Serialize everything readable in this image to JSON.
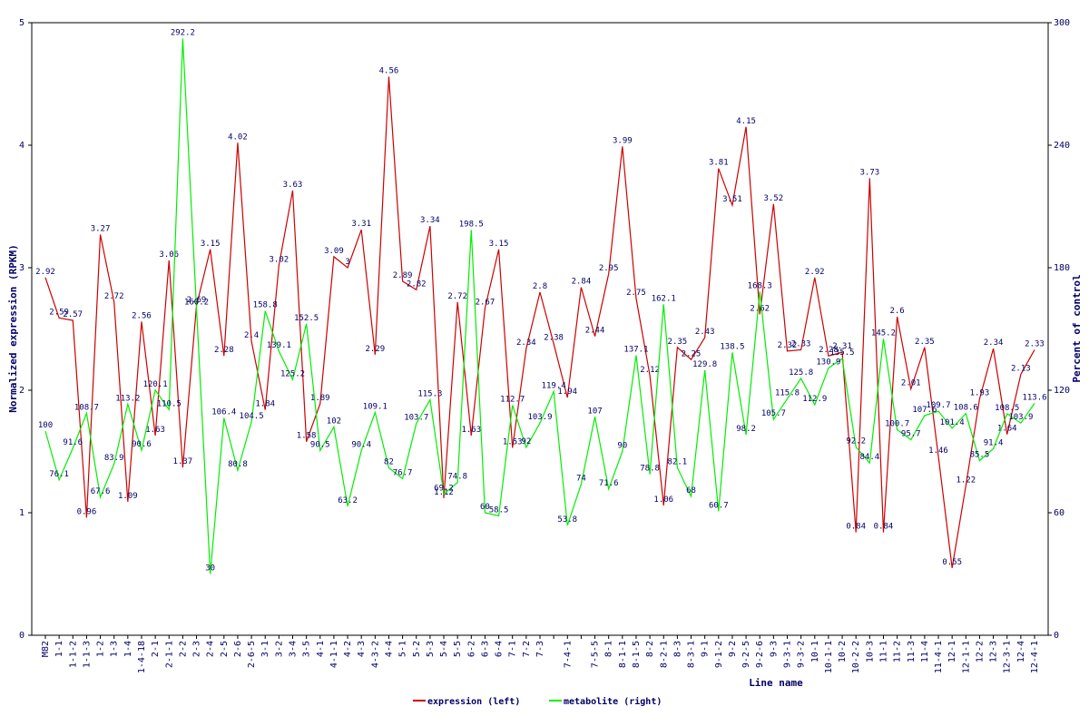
{
  "chart_data": {
    "type": "line",
    "x_label": "Line name",
    "y_label": "Normalized expression (RPKM)",
    "y2_label": "Percent of control",
    "categories": [
      "M82",
      "1-1",
      "1-1-2",
      "1-1-3",
      "1-2",
      "1-3",
      "1-4",
      "1-4-18",
      "2-1",
      "2-1-1",
      "2-2",
      "2-3",
      "2-4",
      "2-5",
      "2-6",
      "2-6-5",
      "3-1",
      "3-2",
      "3-4",
      "3-5",
      "4-1",
      "4-1-1",
      "4-2",
      "4-3",
      "4-3-2",
      "4-4",
      "5-1",
      "5-2",
      "5-3",
      "5-4",
      "5-5",
      "6-2",
      "6-3",
      "6-4",
      "7-1",
      "7-2",
      "7-3",
      null,
      "7-4-1",
      null,
      "7-5-5",
      "8-1",
      "8-1-1",
      "8-1-5",
      "8-2",
      "8-2-1",
      "8-3",
      "8-3-1",
      "9-1",
      "9-1-2",
      "9-2",
      "9-2-5",
      "9-2-6",
      "9-3",
      "9-3-1",
      "9-3-2",
      "10-1",
      "10-1-1",
      "10-2",
      "10-2-2",
      "10-3",
      "11-1",
      "11-2",
      "11-3",
      "11-4",
      "11-4-1",
      "12-1",
      "12-1-1",
      "12-2",
      "12-3",
      "12-3-1",
      "12-4",
      "12-4-1"
    ],
    "series": [
      {
        "name": "expression (left)",
        "color": "#cc0000",
        "axis": "y",
        "values": [
          2.92,
          2.59,
          2.57,
          0.96,
          3.27,
          2.72,
          1.09,
          2.56,
          1.63,
          3.06,
          1.37,
          2.69,
          3.15,
          2.28,
          4.02,
          2.4,
          1.84,
          3.02,
          3.63,
          1.58,
          1.89,
          3.09,
          3,
          3.31,
          2.29,
          4.56,
          2.89,
          2.82,
          3.34,
          1.12,
          2.72,
          1.63,
          2.67,
          3.15,
          1.53,
          2.34,
          2.8,
          2.38,
          1.94,
          2.84,
          2.44,
          2.95,
          3.99,
          2.75,
          2.12,
          1.06,
          2.35,
          2.25,
          2.43,
          3.81,
          3.51,
          4.15,
          2.62,
          3.52,
          2.32,
          2.33,
          2.92,
          2.28,
          2.31,
          0.84,
          3.73,
          0.84,
          2.6,
          2.01,
          2.35,
          1.46,
          0.55,
          1.22,
          1.93,
          2.34,
          1.64,
          2.13,
          2.33
        ]
      },
      {
        "name": "metabolite (right)",
        "color": "#00ee00",
        "axis": "y2",
        "values": [
          100,
          76.1,
          91.6,
          108.7,
          67.6,
          83.9,
          113.2,
          90.6,
          120.1,
          110.5,
          292.2,
          160.2,
          30,
          106.4,
          80.8,
          104.5,
          158.8,
          139.1,
          125.2,
          152.5,
          90.5,
          102,
          63.2,
          90.4,
          109.1,
          82,
          76.7,
          103.7,
          115.3,
          69.2,
          74.8,
          198.5,
          60,
          58.5,
          112.7,
          92,
          103.9,
          119.4,
          53.8,
          74,
          107,
          71.6,
          90,
          137.1,
          78.8,
          162.1,
          82.1,
          68,
          129.8,
          60.7,
          138.5,
          98.2,
          168.3,
          105.7,
          115.8,
          125.8,
          112.9,
          130.9,
          135.5,
          92.2,
          84.4,
          145.2,
          100.7,
          95.7,
          107.6,
          109.7,
          101.4,
          108.6,
          85.5,
          91.4,
          108.5,
          103.9,
          113.6
        ]
      }
    ],
    "ylim": [
      0,
      5
    ],
    "yticks": [
      0,
      1,
      2,
      3,
      4,
      5
    ],
    "y2lim": [
      0,
      300
    ],
    "y2ticks": [
      0,
      60,
      120,
      180,
      240,
      300
    ],
    "legend": "bottom"
  }
}
